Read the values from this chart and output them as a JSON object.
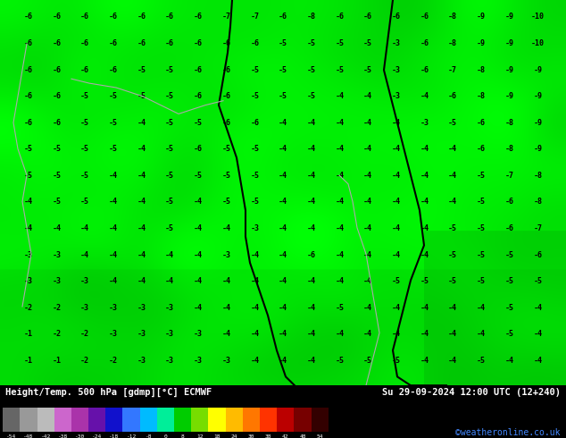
{
  "title_left": "Height/Temp. 500 hPa [gdmp][°C] ECMWF",
  "title_right": "Su 29-09-2024 12:00 UTC (12+240)",
  "credit": "©weatheronline.co.uk",
  "colorbar_tick_labels": [
    "-54",
    "-48",
    "-42",
    "-38",
    "-30",
    "-24",
    "-18",
    "-12",
    "-8",
    "0",
    "8",
    "12",
    "18",
    "24",
    "30",
    "38",
    "42",
    "48",
    "54"
  ],
  "colorbar_colors": [
    "#666666",
    "#999999",
    "#bbbbbb",
    "#cc66cc",
    "#aa33aa",
    "#6611aa",
    "#1111cc",
    "#3377ff",
    "#00bbff",
    "#00ee99",
    "#00cc00",
    "#77dd00",
    "#ffff00",
    "#ffbb00",
    "#ff7700",
    "#ff3300",
    "#bb0000",
    "#770000",
    "#330000"
  ],
  "bg_color": "#000000",
  "map_green_bright": "#00ff00",
  "map_green_mid": "#00cc00",
  "map_green_dark": "#009900",
  "contour_color": "#000000",
  "coast_color": "#aaaaaa",
  "text_color": "#000000",
  "credit_color": "#4488ff",
  "fig_width": 6.34,
  "fig_height": 4.9,
  "dpi": 100,
  "map_numbers": {
    "top_rows": [
      [
        -6,
        -6,
        -6,
        -6,
        -6,
        -6,
        -6,
        -7,
        -7,
        -6,
        -8,
        -6,
        -6,
        -6,
        -6,
        -8,
        -9,
        -9,
        -10
      ],
      [
        -6,
        -6,
        -6,
        -6,
        -6,
        -6,
        -6,
        -6,
        -6,
        -5,
        -5,
        -5,
        -5,
        -3,
        -6,
        -8,
        -9,
        -9,
        -10
      ],
      [
        -6,
        -6,
        -6,
        -6,
        -5,
        -5,
        -6,
        -6,
        -5,
        -5,
        -5,
        -5,
        -5,
        -3,
        -6,
        -7,
        -8,
        -9,
        -9
      ],
      [
        -6,
        -6,
        -5,
        -5,
        -5,
        -5,
        -6,
        -6,
        -5,
        -5,
        -5,
        -4,
        -4,
        -3,
        -4,
        -6,
        -8,
        -9,
        -9
      ],
      [
        -6,
        -6,
        -5,
        -5,
        -4,
        -5,
        -5,
        -6,
        -6,
        -4,
        -4,
        -4,
        -4,
        -4,
        -3,
        -5,
        -6,
        -8,
        -9
      ],
      [
        -5,
        -5,
        -5,
        -5,
        -4,
        -5,
        -6,
        -5,
        -5,
        -4,
        -4,
        -4,
        -4,
        -4,
        -4,
        -4,
        -6,
        -8,
        -9
      ],
      [
        -5,
        -5,
        -5,
        -4,
        -4,
        -5,
        -5,
        -5,
        -5,
        -4,
        -4,
        -4,
        -4,
        -4,
        -4,
        -4,
        -5,
        -7,
        -8
      ],
      [
        -4,
        -5,
        -5,
        -4,
        -4,
        -5,
        -4,
        -5,
        -5,
        -4,
        -4,
        -4,
        -4,
        -4,
        -4,
        -4,
        -5,
        -6,
        -8
      ],
      [
        -4,
        -4,
        -4,
        -4,
        -4,
        -5,
        -4,
        -4,
        -3,
        -4,
        -4,
        -4,
        -4,
        -4,
        -4,
        -5,
        -5,
        -6,
        -7
      ],
      [
        -3,
        -3,
        -4,
        -4,
        -4,
        -4,
        -4,
        -3,
        -4,
        -4,
        -6,
        -4,
        -4,
        -4,
        -4,
        -5,
        -5,
        -5,
        -6
      ],
      [
        -3,
        -3,
        -3,
        -4,
        -4,
        -4,
        -4,
        -4,
        -4,
        -4,
        -4,
        -4,
        -4,
        -5,
        -5,
        -5,
        -5,
        -5,
        -5
      ],
      [
        -2,
        -2,
        -3,
        -3,
        -3,
        -3,
        -4,
        -4,
        -4,
        -4,
        -4,
        -5,
        -4,
        -4,
        -4,
        -4,
        -4,
        -5,
        -4
      ],
      [
        -1,
        -2,
        -2,
        -3,
        -3,
        -3,
        -3,
        -4,
        -4,
        -4,
        -4,
        -4,
        -4,
        -4,
        -4,
        -4,
        -4,
        -5,
        -4
      ],
      [
        -1,
        -1,
        -2,
        -2,
        -3,
        -3,
        -3,
        -3,
        -4,
        -4,
        -4,
        -5,
        -5,
        -5,
        -4,
        -4,
        -5,
        -4,
        -4
      ]
    ]
  }
}
